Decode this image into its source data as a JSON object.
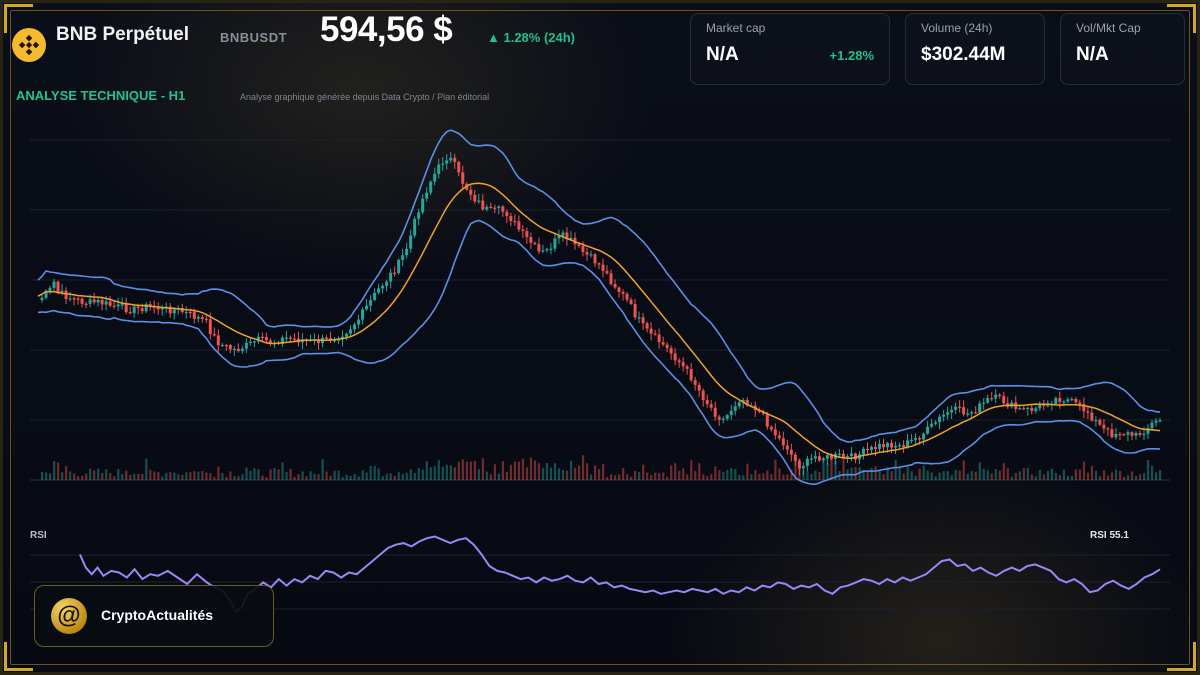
{
  "header": {
    "title": "BNB Perpétuel",
    "ticker": "BNBUSDT",
    "price": "594,56 $",
    "change": "▲ 1.28% (24h)"
  },
  "stats": [
    {
      "label": "Market cap",
      "value": "N/A",
      "sub": "+1.28%"
    },
    {
      "label": "Volume (24h)",
      "value": "$302.44M"
    },
    {
      "label": "Vol/Mkt Cap",
      "value": "N/A"
    }
  ],
  "analysis": {
    "title": "ANALYSE TECHNIQUE - H1",
    "subtitle": "Analyse graphique générée depuis Data Crypto / Plan éditorial"
  },
  "rsi": {
    "label": "RSI",
    "value_label": "RSI 55.1",
    "line_color": "#9b86f5"
  },
  "brand": {
    "name": "CryptoActualités",
    "logo_glyph": "@"
  },
  "colors": {
    "up": "#26a69a",
    "down": "#ef5350",
    "band": "#5a8fe6",
    "ma": "#f0a12a",
    "accent_gold": "#d4a72c"
  },
  "chart_data": {
    "type": "candlestick",
    "xlabel": "",
    "ylabel": "",
    "grid": true,
    "indicators": [
      "bollinger_bands",
      "moving_average",
      "volume",
      "rsi"
    ],
    "close_path": [
      [
        0,
        300
      ],
      [
        6,
        296
      ],
      [
        12,
        290
      ],
      [
        16,
        282
      ],
      [
        20,
        292
      ],
      [
        28,
        296
      ],
      [
        38,
        300
      ],
      [
        50,
        303
      ],
      [
        60,
        302
      ],
      [
        75,
        306
      ],
      [
        95,
        310
      ],
      [
        110,
        306
      ],
      [
        125,
        309
      ],
      [
        140,
        310
      ],
      [
        150,
        314
      ],
      [
        160,
        318
      ],
      [
        168,
        322
      ],
      [
        175,
        336
      ],
      [
        182,
        344
      ],
      [
        190,
        348
      ],
      [
        198,
        350
      ],
      [
        208,
        346
      ],
      [
        220,
        340
      ],
      [
        235,
        342
      ],
      [
        248,
        338
      ],
      [
        262,
        340
      ],
      [
        275,
        342
      ],
      [
        288,
        340
      ],
      [
        300,
        336
      ],
      [
        310,
        330
      ],
      [
        320,
        320
      ],
      [
        330,
        305
      ],
      [
        340,
        290
      ],
      [
        350,
        278
      ],
      [
        360,
        265
      ],
      [
        368,
        250
      ],
      [
        374,
        232
      ],
      [
        380,
        210
      ],
      [
        386,
        196
      ],
      [
        392,
        182
      ],
      [
        398,
        172
      ],
      [
        404,
        162
      ],
      [
        410,
        156
      ],
      [
        416,
        164
      ],
      [
        422,
        178
      ],
      [
        430,
        190
      ],
      [
        438,
        200
      ],
      [
        446,
        208
      ],
      [
        454,
        212
      ],
      [
        462,
        210
      ],
      [
        470,
        214
      ],
      [
        478,
        226
      ],
      [
        486,
        236
      ],
      [
        494,
        244
      ],
      [
        502,
        254
      ],
      [
        510,
        250
      ],
      [
        518,
        240
      ],
      [
        526,
        236
      ],
      [
        534,
        242
      ],
      [
        542,
        250
      ],
      [
        550,
        256
      ],
      [
        558,
        262
      ],
      [
        566,
        270
      ],
      [
        574,
        282
      ],
      [
        582,
        292
      ],
      [
        590,
        302
      ],
      [
        598,
        316
      ],
      [
        606,
        328
      ],
      [
        614,
        336
      ],
      [
        622,
        342
      ],
      [
        630,
        350
      ],
      [
        638,
        358
      ],
      [
        646,
        368
      ],
      [
        654,
        378
      ],
      [
        662,
        392
      ],
      [
        670,
        404
      ],
      [
        678,
        414
      ],
      [
        686,
        420
      ],
      [
        694,
        408
      ],
      [
        702,
        398
      ],
      [
        710,
        402
      ],
      [
        718,
        408
      ],
      [
        726,
        418
      ],
      [
        734,
        430
      ],
      [
        742,
        440
      ],
      [
        750,
        448
      ],
      [
        756,
        460
      ],
      [
        762,
        466
      ],
      [
        770,
        462
      ],
      [
        778,
        456
      ],
      [
        790,
        458
      ],
      [
        800,
        456
      ],
      [
        812,
        458
      ],
      [
        822,
        454
      ],
      [
        832,
        450
      ],
      [
        842,
        446
      ],
      [
        852,
        444
      ],
      [
        862,
        446
      ],
      [
        872,
        442
      ],
      [
        882,
        436
      ],
      [
        892,
        428
      ],
      [
        900,
        420
      ],
      [
        910,
        412
      ],
      [
        920,
        410
      ],
      [
        930,
        414
      ],
      [
        940,
        408
      ],
      [
        950,
        400
      ],
      [
        960,
        398
      ],
      [
        970,
        404
      ],
      [
        980,
        410
      ],
      [
        990,
        410
      ],
      [
        1000,
        408
      ],
      [
        1010,
        402
      ],
      [
        1020,
        398
      ],
      [
        1030,
        400
      ],
      [
        1040,
        406
      ],
      [
        1050,
        412
      ],
      [
        1058,
        422
      ],
      [
        1066,
        430
      ],
      [
        1074,
        434
      ],
      [
        1082,
        432
      ],
      [
        1090,
        434
      ],
      [
        1098,
        436
      ],
      [
        1106,
        430
      ],
      [
        1114,
        424
      ],
      [
        1122,
        420
      ]
    ],
    "rsi_values": [
      [
        0,
        70
      ],
      [
        6,
        62
      ],
      [
        12,
        58
      ],
      [
        18,
        62
      ],
      [
        24,
        57
      ],
      [
        32,
        60
      ],
      [
        40,
        59
      ],
      [
        48,
        56
      ],
      [
        56,
        61
      ],
      [
        64,
        55
      ],
      [
        72,
        58
      ],
      [
        80,
        57
      ],
      [
        90,
        60
      ],
      [
        100,
        56
      ],
      [
        110,
        52
      ],
      [
        120,
        58
      ],
      [
        130,
        53
      ],
      [
        138,
        50
      ],
      [
        146,
        48
      ],
      [
        154,
        42
      ],
      [
        160,
        35
      ],
      [
        166,
        38
      ],
      [
        172,
        46
      ],
      [
        180,
        49
      ],
      [
        188,
        53
      ],
      [
        196,
        50
      ],
      [
        204,
        55
      ],
      [
        212,
        51
      ],
      [
        220,
        55
      ],
      [
        228,
        53
      ],
      [
        236,
        57
      ],
      [
        244,
        55
      ],
      [
        252,
        60
      ],
      [
        260,
        59
      ],
      [
        268,
        56
      ],
      [
        276,
        59
      ],
      [
        284,
        58
      ],
      [
        292,
        62
      ],
      [
        300,
        66
      ],
      [
        308,
        70
      ],
      [
        316,
        74
      ],
      [
        324,
        76
      ],
      [
        332,
        77
      ],
      [
        340,
        75
      ],
      [
        348,
        78
      ],
      [
        356,
        80
      ],
      [
        364,
        81
      ],
      [
        372,
        79
      ],
      [
        380,
        77
      ],
      [
        388,
        79
      ],
      [
        396,
        80
      ],
      [
        404,
        76
      ],
      [
        412,
        70
      ],
      [
        420,
        63
      ],
      [
        428,
        60
      ],
      [
        436,
        59
      ],
      [
        444,
        57
      ],
      [
        452,
        55
      ],
      [
        460,
        56
      ],
      [
        468,
        53
      ],
      [
        476,
        56
      ],
      [
        484,
        54
      ],
      [
        492,
        55
      ],
      [
        500,
        57
      ],
      [
        508,
        54
      ],
      [
        516,
        53
      ],
      [
        524,
        56
      ],
      [
        532,
        52
      ],
      [
        540,
        53
      ],
      [
        548,
        50
      ],
      [
        556,
        51
      ],
      [
        564,
        49
      ],
      [
        572,
        48
      ],
      [
        580,
        47
      ],
      [
        588,
        48
      ],
      [
        596,
        46
      ],
      [
        604,
        47
      ],
      [
        612,
        48
      ],
      [
        620,
        47
      ],
      [
        628,
        49
      ],
      [
        636,
        48
      ],
      [
        644,
        47
      ],
      [
        652,
        49
      ],
      [
        660,
        46
      ],
      [
        668,
        48
      ],
      [
        676,
        47
      ],
      [
        684,
        50
      ],
      [
        692,
        48
      ],
      [
        700,
        51
      ],
      [
        708,
        50
      ],
      [
        716,
        53
      ],
      [
        724,
        52
      ],
      [
        732,
        49
      ],
      [
        740,
        51
      ],
      [
        748,
        50
      ],
      [
        756,
        52
      ],
      [
        764,
        48
      ],
      [
        772,
        46
      ],
      [
        780,
        50
      ],
      [
        788,
        51
      ],
      [
        796,
        53
      ],
      [
        804,
        55
      ],
      [
        812,
        54
      ],
      [
        820,
        52
      ],
      [
        828,
        55
      ],
      [
        836,
        53
      ],
      [
        844,
        56
      ],
      [
        852,
        54
      ],
      [
        860,
        56
      ],
      [
        868,
        58
      ],
      [
        876,
        62
      ],
      [
        884,
        66
      ],
      [
        892,
        67
      ],
      [
        900,
        63
      ],
      [
        908,
        64
      ],
      [
        916,
        60
      ],
      [
        924,
        62
      ],
      [
        932,
        59
      ],
      [
        940,
        57
      ],
      [
        948,
        60
      ],
      [
        956,
        62
      ],
      [
        964,
        60
      ],
      [
        972,
        63
      ],
      [
        980,
        64
      ],
      [
        988,
        62
      ],
      [
        996,
        60
      ],
      [
        1004,
        55
      ],
      [
        1012,
        53
      ],
      [
        1020,
        55
      ],
      [
        1028,
        52
      ],
      [
        1036,
        47
      ],
      [
        1044,
        48
      ],
      [
        1052,
        52
      ],
      [
        1060,
        54
      ],
      [
        1068,
        51
      ],
      [
        1076,
        49
      ],
      [
        1084,
        52
      ],
      [
        1092,
        56
      ],
      [
        1100,
        58
      ],
      [
        1108,
        61
      ]
    ],
    "rsi_last": 55.1
  }
}
